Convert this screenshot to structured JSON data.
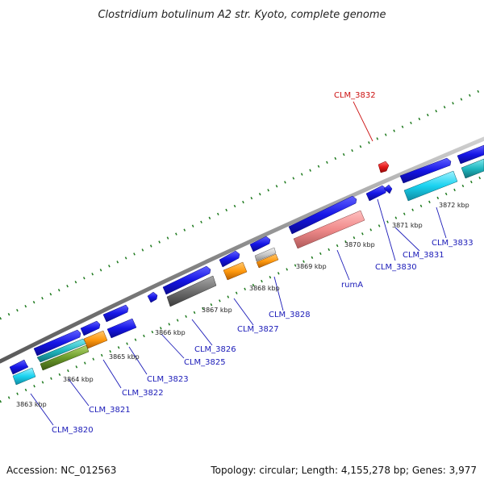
{
  "title": "Clostridium botulinum A2 str. Kyoto, complete genome",
  "accession": "Accession: NC_012563",
  "summary": "Topology: circular; Length: 4,155,278 bp; Genes: 3,977",
  "colors": {
    "blue": "#1515e6",
    "cyan": "#1ad2f0",
    "orange": "#ff9a10",
    "salmon": "#f08a8a",
    "gray": "#6e6e6e",
    "olive": "#6a9a2a",
    "teal": "#20b8c0",
    "red": "#e51a1a",
    "backbone": "#8a8a8a",
    "tick": "#1e7a1e",
    "label": "#1a1ab8"
  },
  "kbp_ticks": [
    "3863 kbp",
    "3864 kbp",
    "3865 kbp",
    "3866 kbp",
    "3867 kbp",
    "3868 kbp",
    "3869 kbp",
    "3870 kbp",
    "3871 kbp",
    "3872 kbp"
  ],
  "gene_labels": [
    "CLM_3820",
    "CLM_3821",
    "CLM_3822",
    "CLM_3823",
    "CLM_3825",
    "CLM_3826",
    "CLM_3827",
    "CLM_3828",
    "rumA",
    "CLM_3830",
    "CLM_3831",
    "CLM_3833",
    "CLM_3832"
  ]
}
